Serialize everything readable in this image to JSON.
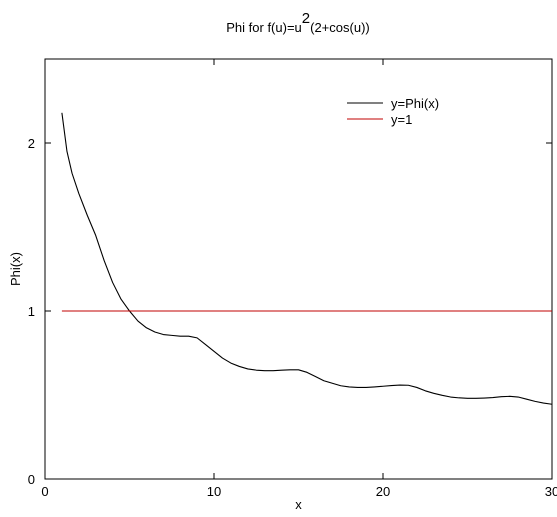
{
  "chart_data": {
    "type": "line",
    "title": {
      "prefix": "Phi for f(u)=u",
      "superscript": "2",
      "suffix": "(2+cos(u))"
    },
    "xlabel": "x",
    "ylabel": "Phi(x)",
    "xlim": [
      0,
      30
    ],
    "ylim": [
      0,
      2.5
    ],
    "xticks": [
      0,
      10,
      20,
      30
    ],
    "yticks": [
      0,
      1,
      2
    ],
    "grid": false,
    "legend_position": "top-right",
    "series": [
      {
        "name": "y=Phi(x)",
        "color": "#000000",
        "x": [
          1.0,
          1.3,
          1.6,
          2.0,
          2.5,
          3.0,
          3.5,
          4.0,
          4.5,
          5.0,
          5.5,
          6.0,
          6.5,
          7.0,
          7.5,
          8.0,
          8.5,
          9.0,
          9.5,
          10.0,
          10.5,
          11.0,
          11.5,
          12.0,
          12.5,
          13.0,
          13.5,
          14.0,
          14.5,
          15.0,
          15.5,
          16.0,
          16.5,
          17.0,
          17.5,
          18.0,
          18.5,
          19.0,
          19.5,
          20.0,
          20.5,
          21.0,
          21.5,
          22.0,
          22.5,
          23.0,
          23.5,
          24.0,
          24.5,
          25.0,
          25.5,
          26.0,
          26.5,
          27.0,
          27.5,
          28.0,
          28.5,
          29.0,
          29.5,
          30.0
        ],
        "y": [
          2.18,
          1.95,
          1.82,
          1.7,
          1.57,
          1.45,
          1.3,
          1.17,
          1.07,
          1.0,
          0.94,
          0.9,
          0.875,
          0.86,
          0.855,
          0.85,
          0.85,
          0.84,
          0.8,
          0.76,
          0.72,
          0.69,
          0.67,
          0.655,
          0.648,
          0.645,
          0.645,
          0.648,
          0.65,
          0.65,
          0.635,
          0.61,
          0.585,
          0.57,
          0.555,
          0.548,
          0.545,
          0.545,
          0.548,
          0.552,
          0.556,
          0.559,
          0.558,
          0.545,
          0.525,
          0.51,
          0.498,
          0.488,
          0.483,
          0.48,
          0.48,
          0.482,
          0.485,
          0.49,
          0.492,
          0.488,
          0.475,
          0.462,
          0.452,
          0.445
        ]
      },
      {
        "name": "y=1",
        "color": "#c00000",
        "x": [
          1.0,
          30.0
        ],
        "y": [
          1.0,
          1.0
        ]
      }
    ]
  }
}
